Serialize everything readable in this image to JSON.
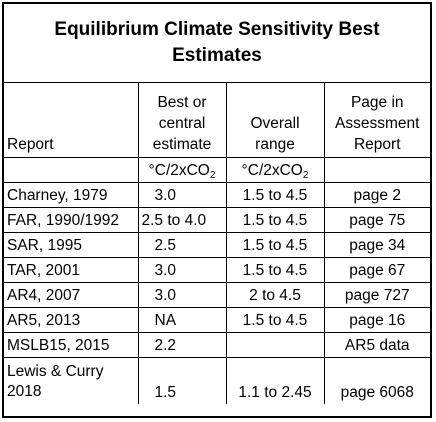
{
  "table": {
    "title": "Equilibrium Climate Sensitivity Best Estimates",
    "headers": {
      "report": "Report",
      "best_estimate": "Best or central estimate",
      "overall_range": "Overall range",
      "page": "Page in Assessment Report"
    },
    "units": {
      "prefix": "°C/2xCO",
      "sub": "2"
    },
    "rows": [
      {
        "report": "Charney, 1979",
        "best": "3.0",
        "range": "1.5 to 4.5",
        "page": "page 2"
      },
      {
        "report": "FAR, 1990/1992",
        "best": "2.5 to 4.0",
        "range": "1.5 to 4.5",
        "page": "page 75"
      },
      {
        "report": "SAR, 1995",
        "best": "2.5",
        "range": "1.5 to 4.5",
        "page": "page 34"
      },
      {
        "report": "TAR, 2001",
        "best": "3.0",
        "range": "1.5 to 4.5",
        "page": "page 67"
      },
      {
        "report": "AR4, 2007",
        "best": "3.0",
        "range": "2 to 4.5",
        "page": "page 727"
      },
      {
        "report": "AR5, 2013",
        "best": "NA",
        "range": "1.5 to 4.5",
        "page": "page 16"
      },
      {
        "report": "MSLB15, 2015",
        "best": "2.2",
        "range": "",
        "page": "AR5 data"
      },
      {
        "report": "Lewis & Curry 2018",
        "best": "1.5",
        "range": "1.1 to 2.45",
        "page": "page 6068"
      }
    ]
  }
}
